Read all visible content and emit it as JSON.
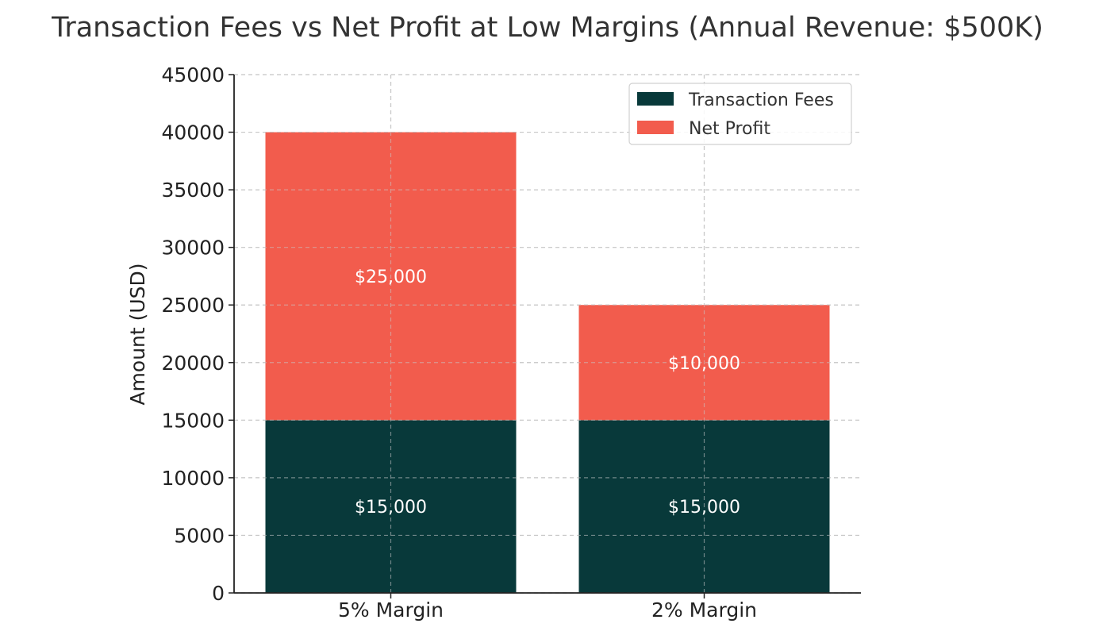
{
  "chart_data": {
    "type": "bar",
    "stacked": true,
    "title": "Transaction Fees vs Net Profit at Low Margins (Annual Revenue: $500K)",
    "xlabel": "",
    "ylabel": "Amount (USD)",
    "categories": [
      "5% Margin",
      "2% Margin"
    ],
    "series": [
      {
        "name": "Transaction Fees",
        "values": [
          15000,
          15000
        ],
        "labels": [
          "$15,000",
          "$15,000"
        ],
        "color": "#08393a"
      },
      {
        "name": "Net Profit",
        "values": [
          25000,
          10000
        ],
        "labels": [
          "$25,000",
          "$10,000"
        ],
        "color": "#f25c4d"
      }
    ],
    "ylim": [
      0,
      45000
    ],
    "yticks": [
      0,
      5000,
      10000,
      15000,
      20000,
      25000,
      30000,
      35000,
      40000,
      45000
    ],
    "yticklabels": [
      "0",
      "5000",
      "10000",
      "15000",
      "20000",
      "25000",
      "30000",
      "35000",
      "40000",
      "45000"
    ],
    "grid": true,
    "legend_position": "top-right"
  }
}
